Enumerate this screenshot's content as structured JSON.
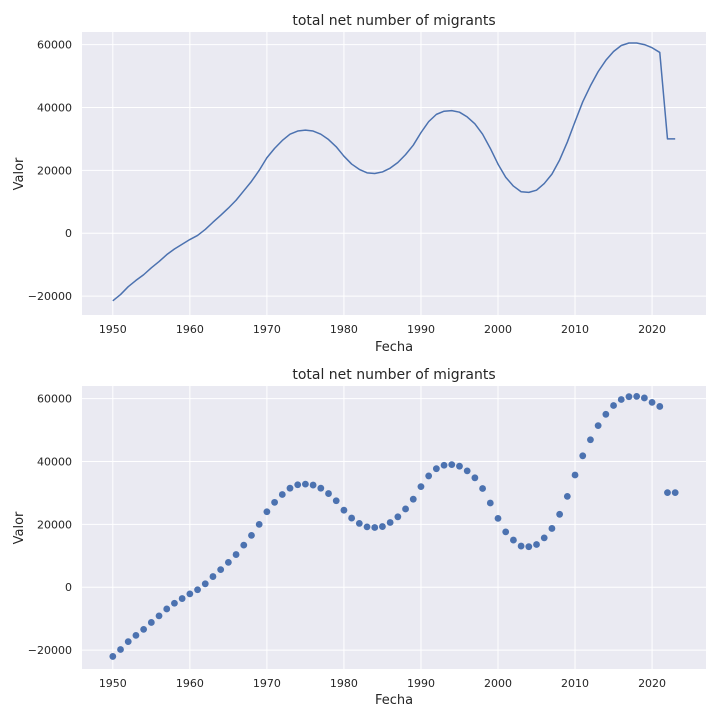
{
  "chart_data": [
    {
      "type": "line",
      "title": "total net number of migrants",
      "xlabel": "Fecha",
      "ylabel": "Valor",
      "xlim": [
        1946,
        2027
      ],
      "ylim": [
        -26000,
        64000
      ],
      "xticks": [
        1950,
        1960,
        1970,
        1980,
        1990,
        2000,
        2010,
        2020
      ],
      "yticks": [
        -20000,
        0,
        20000,
        40000,
        60000
      ],
      "grid": true,
      "color": "#4c72b0",
      "x": [
        1950,
        1951,
        1952,
        1953,
        1954,
        1955,
        1956,
        1957,
        1958,
        1959,
        1960,
        1961,
        1962,
        1963,
        1964,
        1965,
        1966,
        1967,
        1968,
        1969,
        1970,
        1971,
        1972,
        1973,
        1974,
        1975,
        1976,
        1977,
        1978,
        1979,
        1980,
        1981,
        1982,
        1983,
        1984,
        1985,
        1986,
        1987,
        1988,
        1989,
        1990,
        1991,
        1992,
        1993,
        1994,
        1995,
        1996,
        1997,
        1998,
        1999,
        2000,
        2001,
        2002,
        2003,
        2004,
        2005,
        2006,
        2007,
        2008,
        2009,
        2010,
        2011,
        2012,
        2013,
        2014,
        2015,
        2016,
        2017,
        2018,
        2019,
        2020,
        2021,
        2022,
        2023
      ],
      "y": [
        -21500,
        -19500,
        -17000,
        -15000,
        -13200,
        -11000,
        -9000,
        -6800,
        -5000,
        -3500,
        -2000,
        -700,
        1200,
        3500,
        5700,
        8000,
        10500,
        13500,
        16500,
        20000,
        24000,
        27000,
        29500,
        31500,
        32500,
        32800,
        32500,
        31500,
        29800,
        27500,
        24500,
        22000,
        20300,
        19200,
        19000,
        19500,
        20700,
        22500,
        25000,
        28000,
        32000,
        35500,
        37800,
        38800,
        39000,
        38500,
        37000,
        34800,
        31500,
        27000,
        22000,
        17800,
        15000,
        13200,
        13000,
        13700,
        15800,
        18800,
        23300,
        29000,
        35500,
        41800,
        46900,
        51400,
        55000,
        57800,
        59700,
        60500,
        60500,
        60000,
        59000,
        57500,
        30000,
        30000
      ]
    },
    {
      "type": "scatter",
      "title": "total net number of migrants",
      "xlabel": "Fecha",
      "ylabel": "Valor",
      "xlim": [
        1946,
        2027
      ],
      "ylim": [
        -26000,
        64000
      ],
      "xticks": [
        1950,
        1960,
        1970,
        1980,
        1990,
        2000,
        2010,
        2020
      ],
      "yticks": [
        -20000,
        0,
        20000,
        40000,
        60000
      ],
      "grid": true,
      "color": "#4c72b0",
      "x": [
        1950,
        1951,
        1952,
        1953,
        1954,
        1955,
        1956,
        1957,
        1958,
        1959,
        1960,
        1961,
        1962,
        1963,
        1964,
        1965,
        1966,
        1967,
        1968,
        1969,
        1970,
        1971,
        1972,
        1973,
        1974,
        1975,
        1976,
        1977,
        1978,
        1979,
        1980,
        1981,
        1982,
        1983,
        1984,
        1985,
        1986,
        1987,
        1988,
        1989,
        1990,
        1991,
        1992,
        1993,
        1994,
        1995,
        1996,
        1997,
        1998,
        1999,
        2000,
        2001,
        2002,
        2003,
        2004,
        2005,
        2006,
        2007,
        2008,
        2009,
        2010,
        2011,
        2012,
        2013,
        2014,
        2015,
        2016,
        2017,
        2018,
        2019,
        2020,
        2021,
        2022,
        2023
      ],
      "y": [
        -22000,
        -19800,
        -17300,
        -15300,
        -13400,
        -11200,
        -9100,
        -6900,
        -5100,
        -3600,
        -2100,
        -800,
        1100,
        3400,
        5600,
        7900,
        10400,
        13400,
        16500,
        20000,
        24000,
        27000,
        29500,
        31500,
        32600,
        32800,
        32500,
        31500,
        29800,
        27500,
        24500,
        22000,
        20300,
        19200,
        19000,
        19300,
        20600,
        22400,
        24900,
        28000,
        32000,
        35400,
        37700,
        38800,
        39000,
        38500,
        37000,
        34800,
        31400,
        26800,
        21900,
        17600,
        15000,
        13100,
        12900,
        13600,
        15700,
        18700,
        23200,
        28900,
        35700,
        41800,
        46900,
        51400,
        55000,
        57800,
        59700,
        60600,
        60700,
        60200,
        58800,
        57500,
        30100,
        30100
      ]
    }
  ]
}
